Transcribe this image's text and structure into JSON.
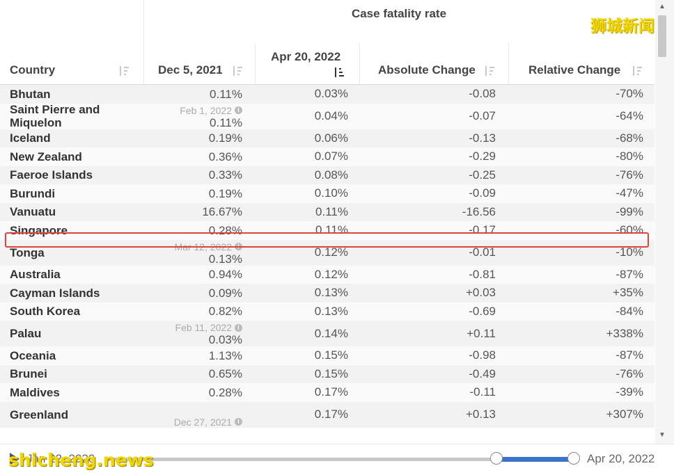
{
  "table": {
    "group_title": "Case fatality rate",
    "columns": [
      {
        "id": "country",
        "label": "Country"
      },
      {
        "id": "dec",
        "label": "Dec 5, 2021"
      },
      {
        "id": "apr",
        "label": "Apr 20, 2022"
      },
      {
        "id": "abs",
        "label": "Absolute Change"
      },
      {
        "id": "rel",
        "label": "Relative Change"
      }
    ],
    "rows": [
      {
        "country": "Bhutan",
        "dec": "0.11%",
        "dec_note": "",
        "apr": "0.03%",
        "abs": "-0.08",
        "rel": "-70%"
      },
      {
        "country": "Saint Pierre and Miquelon",
        "dec": "0.11%",
        "dec_note": "Feb 1, 2022",
        "apr": "0.04%",
        "abs": "-0.07",
        "rel": "-64%"
      },
      {
        "country": "Iceland",
        "dec": "0.19%",
        "dec_note": "",
        "apr": "0.06%",
        "abs": "-0.13",
        "rel": "-68%"
      },
      {
        "country": "New Zealand",
        "dec": "0.36%",
        "dec_note": "",
        "apr": "0.07%",
        "abs": "-0.29",
        "rel": "-80%"
      },
      {
        "country": "Faeroe Islands",
        "dec": "0.33%",
        "dec_note": "",
        "apr": "0.08%",
        "abs": "-0.25",
        "rel": "-76%"
      },
      {
        "country": "Burundi",
        "dec": "0.19%",
        "dec_note": "",
        "apr": "0.10%",
        "abs": "-0.09",
        "rel": "-47%"
      },
      {
        "country": "Vanuatu",
        "dec": "16.67%",
        "dec_note": "",
        "apr": "0.11%",
        "abs": "-16.56",
        "rel": "-99%"
      },
      {
        "country": "Singapore",
        "dec": "0.28%",
        "dec_note": "",
        "apr": "0.11%",
        "abs": "-0.17",
        "rel": "-60%"
      },
      {
        "country": "Tonga",
        "dec": "0.13%",
        "dec_note": "Mar 12, 2022",
        "apr": "0.12%",
        "abs": "-0.01",
        "rel": "-10%"
      },
      {
        "country": "Australia",
        "dec": "0.94%",
        "dec_note": "",
        "apr": "0.12%",
        "abs": "-0.81",
        "rel": "-87%"
      },
      {
        "country": "Cayman Islands",
        "dec": "0.09%",
        "dec_note": "",
        "apr": "0.13%",
        "abs": "+0.03",
        "rel": "+35%"
      },
      {
        "country": "South Korea",
        "dec": "0.82%",
        "dec_note": "",
        "apr": "0.13%",
        "abs": "-0.69",
        "rel": "-84%"
      },
      {
        "country": "Palau",
        "dec": "0.03%",
        "dec_note": "Feb 11, 2022",
        "apr": "0.14%",
        "abs": "+0.11",
        "rel": "+338%"
      },
      {
        "country": "Oceania",
        "dec": "1.13%",
        "dec_note": "",
        "apr": "0.15%",
        "abs": "-0.98",
        "rel": "-87%"
      },
      {
        "country": "Brunei",
        "dec": "0.65%",
        "dec_note": "",
        "apr": "0.15%",
        "abs": "-0.49",
        "rel": "-76%"
      },
      {
        "country": "Maldives",
        "dec": "0.28%",
        "dec_note": "",
        "apr": "0.17%",
        "abs": "-0.11",
        "rel": "-39%"
      },
      {
        "country": "Greenland",
        "dec": "",
        "dec_note": "Dec 27, 2021",
        "apr": "0.17%",
        "abs": "+0.13",
        "rel": "+307%"
      }
    ],
    "highlighted_row": "Singapore",
    "highlight_color": "#d9453b"
  },
  "timeline": {
    "start_label": "Jan 22, 2020",
    "end_label": "Apr 20, 2022",
    "accent_color": "#3c74c9"
  },
  "watermarks": {
    "top": "狮城新闻",
    "bottom": "shicheng.news"
  }
}
